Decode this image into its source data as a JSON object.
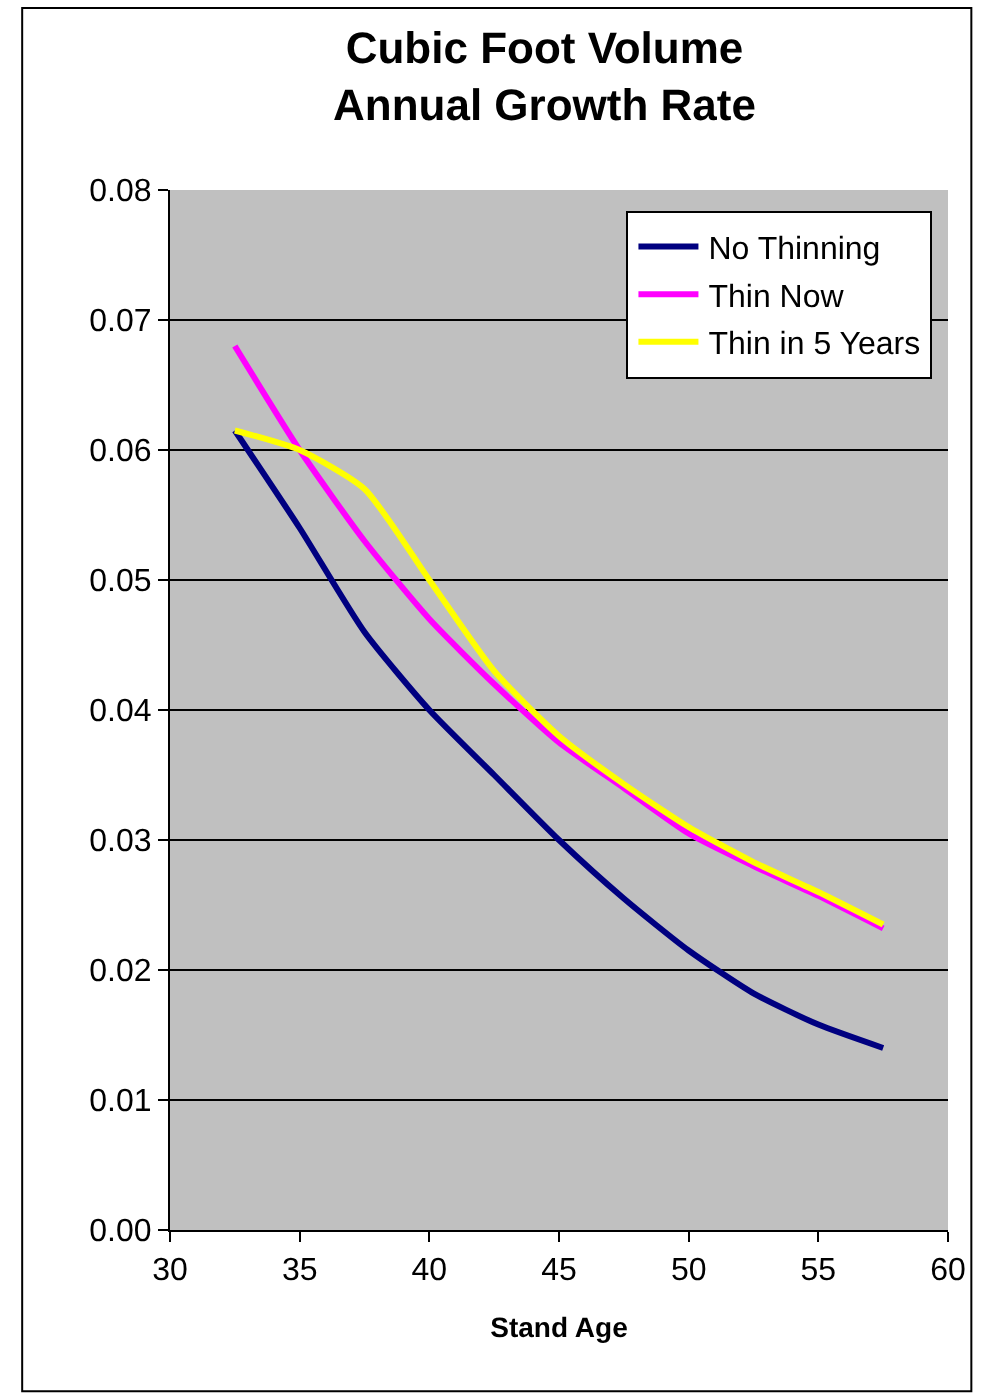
{
  "chart_data": {
    "type": "line",
    "title": "Cubic Foot Volume\nAnnual Growth Rate",
    "xlabel": "Stand Age",
    "x": [
      32.5,
      35,
      37.5,
      40,
      42.5,
      45,
      47.5,
      50,
      52.5,
      55,
      57.5
    ],
    "series": [
      {
        "name": "No Thinning",
        "color": "#000080",
        "values": [
          0.0615,
          0.054,
          0.046,
          0.04,
          0.035,
          0.03,
          0.0255,
          0.0215,
          0.0182,
          0.0158,
          0.014
        ]
      },
      {
        "name": "Thin Now",
        "color": "#ff00ff",
        "values": [
          0.068,
          0.06,
          0.053,
          0.047,
          0.042,
          0.0375,
          0.034,
          0.0305,
          0.028,
          0.0257,
          0.0232
        ]
      },
      {
        "name": "Thin in 5 Years",
        "color": "#ffff00",
        "values": [
          0.0615,
          0.06,
          0.057,
          0.05,
          0.043,
          0.038,
          0.0343,
          0.031,
          0.0283,
          0.026,
          0.0235
        ]
      }
    ],
    "xlim": [
      30,
      60
    ],
    "xticks": [
      30,
      35,
      40,
      45,
      50,
      55,
      60
    ],
    "ylim": [
      0,
      0.08
    ],
    "yticks": [
      {
        "value": 0,
        "label": "0.00"
      },
      {
        "value": 0.01,
        "label": "0.01"
      },
      {
        "value": 0.02,
        "label": "0.02"
      },
      {
        "value": 0.03,
        "label": "0.03"
      },
      {
        "value": 0.04,
        "label": "0.04"
      },
      {
        "value": 0.05,
        "label": "0.05"
      },
      {
        "value": 0.06,
        "label": "0.06"
      },
      {
        "value": 0.07,
        "label": "0.07"
      },
      {
        "value": 0.08,
        "label": "0.08"
      }
    ],
    "grid": "y",
    "legend": "top right",
    "marker": "none",
    "line_style": "solid"
  }
}
